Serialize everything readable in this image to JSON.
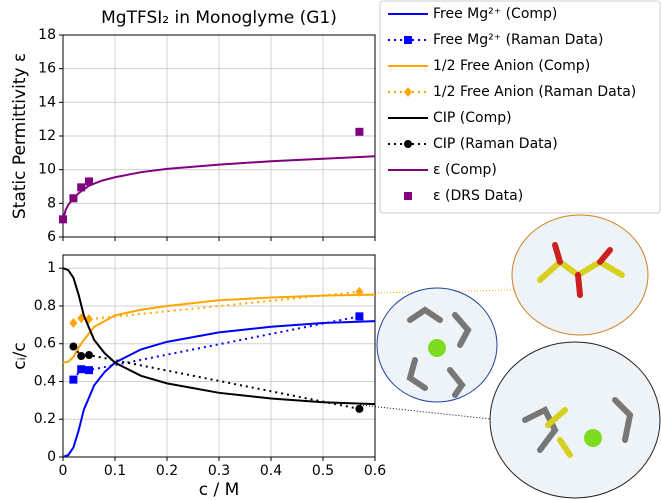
{
  "chart_data": [
    {
      "type": "line",
      "title": "MgTFSI₂ in Monoglyme (G1)",
      "y_label": "Static Permittivity ε",
      "xlim": [
        0,
        0.6
      ],
      "xticks": [
        0.0,
        0.1,
        0.2,
        0.3,
        0.4,
        0.5,
        0.6
      ],
      "ylim": [
        6,
        18
      ],
      "yticks": [
        6,
        8,
        10,
        12,
        14,
        16,
        18
      ],
      "grid": true,
      "series": [
        {
          "name": "ε (Comp)",
          "color": "#800080",
          "dash": "solid",
          "x": [
            0,
            0.005,
            0.01,
            0.02,
            0.03,
            0.05,
            0.075,
            0.1,
            0.15,
            0.2,
            0.3,
            0.4,
            0.5,
            0.6
          ],
          "values": [
            7.0,
            7.6,
            7.9,
            8.3,
            8.6,
            9.05,
            9.35,
            9.55,
            9.85,
            10.05,
            10.3,
            10.5,
            10.65,
            10.8
          ]
        },
        {
          "name": "ε (DRS Data)",
          "color": "#800080",
          "marker": "square",
          "x": [
            0.0,
            0.02,
            0.035,
            0.05,
            0.57
          ],
          "values": [
            7.05,
            8.3,
            8.95,
            9.3,
            12.25
          ]
        }
      ]
    },
    {
      "type": "line",
      "x_label": "c / M",
      "y_label": "cᵢ/c",
      "xlim": [
        0,
        0.6
      ],
      "xticks": [
        0.0,
        0.1,
        0.2,
        0.3,
        0.4,
        0.5,
        0.6
      ],
      "ylim": [
        0,
        1.07
      ],
      "yticks": [
        0.0,
        0.2,
        0.4,
        0.6,
        0.8,
        1.0
      ],
      "grid": true,
      "series": [
        {
          "name": "Free Mg²⁺ (Comp)",
          "color": "#0000ff",
          "dash": "solid",
          "x": [
            0,
            0.01,
            0.02,
            0.03,
            0.04,
            0.06,
            0.08,
            0.1,
            0.15,
            0.2,
            0.3,
            0.4,
            0.5,
            0.6
          ],
          "values": [
            0.0,
            0.01,
            0.05,
            0.14,
            0.25,
            0.38,
            0.45,
            0.5,
            0.57,
            0.61,
            0.66,
            0.69,
            0.71,
            0.72
          ]
        },
        {
          "name": "Free Mg²⁺ (Raman Data)",
          "color": "#0000ff",
          "dash": "dotted",
          "marker": "square",
          "x": [
            0.02,
            0.035,
            0.05,
            0.57
          ],
          "values": [
            0.41,
            0.465,
            0.46,
            0.745
          ]
        },
        {
          "name": "1/2 Free Anion (Comp)",
          "color": "#ffa500",
          "dash": "solid",
          "x": [
            0,
            0.01,
            0.02,
            0.03,
            0.04,
            0.06,
            0.08,
            0.1,
            0.15,
            0.2,
            0.3,
            0.4,
            0.5,
            0.6
          ],
          "values": [
            0.5,
            0.505,
            0.53,
            0.58,
            0.62,
            0.69,
            0.72,
            0.75,
            0.78,
            0.8,
            0.83,
            0.845,
            0.855,
            0.86
          ]
        },
        {
          "name": "1/2 Free Anion (Raman Data)",
          "color": "#ffa500",
          "dash": "dotted",
          "marker": "diamond",
          "x": [
            0.02,
            0.035,
            0.05,
            0.57
          ],
          "values": [
            0.71,
            0.735,
            0.73,
            0.875
          ]
        },
        {
          "name": "CIP (Comp)",
          "color": "#000000",
          "dash": "solid",
          "x": [
            0,
            0.01,
            0.02,
            0.03,
            0.04,
            0.06,
            0.08,
            0.1,
            0.15,
            0.2,
            0.3,
            0.4,
            0.5,
            0.6
          ],
          "values": [
            1.0,
            0.99,
            0.95,
            0.86,
            0.75,
            0.62,
            0.55,
            0.5,
            0.43,
            0.39,
            0.34,
            0.31,
            0.29,
            0.28
          ]
        },
        {
          "name": "CIP (Raman Data)",
          "color": "#000000",
          "dash": "dotted",
          "marker": "circle",
          "x": [
            0.02,
            0.035,
            0.05,
            0.57
          ],
          "values": [
            0.585,
            0.535,
            0.54,
            0.255
          ]
        }
      ]
    }
  ]
}
